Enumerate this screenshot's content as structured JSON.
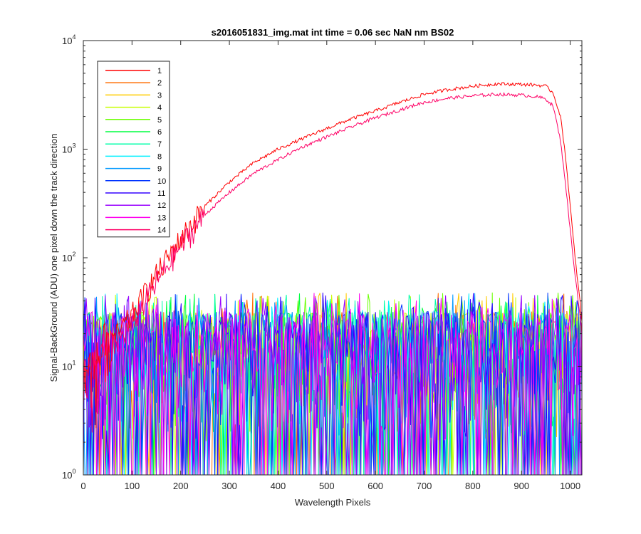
{
  "chart_data": {
    "type": "line",
    "title": "s2016051831_img.mat int time = 0.06 sec  NaN nm BS02",
    "xlabel": "Wavelength Pixels",
    "ylabel": "Signal-BackGround (ADU) one pixel down the track direction",
    "xlim": [
      0,
      1024
    ],
    "ylim": [
      1,
      10000
    ],
    "yscale": "log",
    "grid": false,
    "legend_position": "top-left",
    "x_ticks": [
      "0",
      "100",
      "200",
      "300",
      "400",
      "500",
      "600",
      "700",
      "800",
      "900",
      "1000"
    ],
    "y_ticks": [
      {
        "base": "10",
        "exp": "0"
      },
      {
        "base": "10",
        "exp": "1"
      },
      {
        "base": "10",
        "exp": "2"
      },
      {
        "base": "10",
        "exp": "3"
      },
      {
        "base": "10",
        "exp": "4"
      }
    ],
    "signal_profile": {
      "x": [
        0,
        20,
        50,
        100,
        150,
        200,
        250,
        300,
        350,
        400,
        450,
        500,
        550,
        600,
        650,
        700,
        750,
        800,
        850,
        900,
        930,
        950,
        965,
        980,
        990,
        1000,
        1010,
        1020,
        1024
      ],
      "series_1": [
        8,
        10,
        15,
        30,
        70,
        150,
        300,
        500,
        750,
        1000,
        1250,
        1550,
        1900,
        2250,
        2700,
        3200,
        3550,
        3800,
        4000,
        3950,
        3900,
        3800,
        3300,
        2000,
        900,
        300,
        100,
        40,
        25
      ],
      "series_14": [
        8,
        9,
        13,
        25,
        60,
        130,
        250,
        400,
        600,
        800,
        1050,
        1300,
        1600,
        1950,
        2300,
        2700,
        2950,
        3100,
        3200,
        3150,
        3050,
        2900,
        2500,
        1200,
        500,
        180,
        70,
        30,
        20
      ]
    },
    "noise_range": [
      1,
      50
    ],
    "series": [
      {
        "name": "1",
        "color": "#ff0000",
        "kind": "signal"
      },
      {
        "name": "2",
        "color": "#ff6e00",
        "kind": "noise"
      },
      {
        "name": "3",
        "color": "#ffcc00",
        "kind": "noise"
      },
      {
        "name": "4",
        "color": "#c8ff00",
        "kind": "noise"
      },
      {
        "name": "5",
        "color": "#6aff00",
        "kind": "noise"
      },
      {
        "name": "6",
        "color": "#00ff40",
        "kind": "noise"
      },
      {
        "name": "7",
        "color": "#00ffaa",
        "kind": "noise"
      },
      {
        "name": "8",
        "color": "#00f0ff",
        "kind": "noise"
      },
      {
        "name": "9",
        "color": "#0099ff",
        "kind": "noise"
      },
      {
        "name": "10",
        "color": "#0033ff",
        "kind": "noise"
      },
      {
        "name": "11",
        "color": "#3300ff",
        "kind": "noise"
      },
      {
        "name": "12",
        "color": "#9900ff",
        "kind": "noise"
      },
      {
        "name": "13",
        "color": "#ff00ee",
        "kind": "noise"
      },
      {
        "name": "14",
        "color": "#ff0066",
        "kind": "signal"
      }
    ]
  }
}
